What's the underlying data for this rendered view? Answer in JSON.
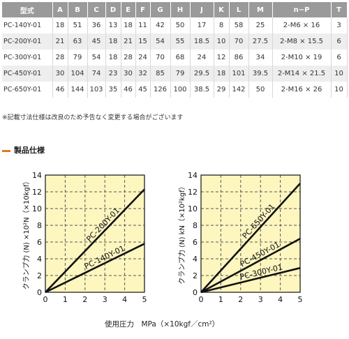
{
  "table": {
    "headers": [
      "型式",
      "A",
      "B",
      "C",
      "D",
      "E",
      "F",
      "G",
      "H",
      "J",
      "K",
      "L",
      "M",
      "n−P",
      "T"
    ],
    "rows": [
      [
        "PC-140Y-01",
        "18",
        "51",
        "36",
        "13",
        "18",
        "11",
        "42",
        "50",
        "17",
        "8",
        "58",
        "25",
        "2-M6 × 16",
        "3"
      ],
      [
        "PC-200Y-01",
        "21",
        "63",
        "45",
        "18",
        "21",
        "15",
        "54",
        "55",
        "18.5",
        "10",
        "70",
        "27.5",
        "2-M8 × 15.5",
        "6"
      ],
      [
        "PC-300Y-01",
        "28",
        "79",
        "54",
        "18",
        "28",
        "24",
        "70",
        "68",
        "24",
        "12",
        "86",
        "34",
        "2-M10 × 19",
        "6"
      ],
      [
        "PC-450Y-01",
        "30",
        "104",
        "74",
        "23",
        "30",
        "32",
        "85",
        "79",
        "29.5",
        "18",
        "101",
        "39.5",
        "2-M14 × 21.5",
        "10"
      ],
      [
        "PC-650Y-01",
        "46",
        "144",
        "103",
        "35",
        "46",
        "45",
        "126",
        "100",
        "38.5",
        "29",
        "142",
        "50",
        "2-M16 × 26",
        "10"
      ]
    ]
  },
  "note": "※記載寸法仕様は改良のため予告なく変更する場合がございます",
  "section_title": "製品仕様",
  "x_axis_title": "使用圧力　MPa（×10kgf／cm²）",
  "chart_data": [
    {
      "type": "line",
      "ylabel": "クランプ力 (N) ×10²N（×10kgf）",
      "xlim": [
        0,
        5
      ],
      "ylim": [
        0,
        14
      ],
      "x_ticks": [
        "0",
        "1",
        "2",
        "3",
        "4",
        "5"
      ],
      "y_ticks": [
        "0",
        "2",
        "4",
        "6",
        "8",
        "10",
        "12",
        "14"
      ],
      "grid": true,
      "series": [
        {
          "name": "PC-200Y-01",
          "x": [
            0,
            5
          ],
          "y": [
            0,
            12.3
          ]
        },
        {
          "name": "PC-140Y-01",
          "x": [
            0,
            5
          ],
          "y": [
            0,
            5.8
          ]
        }
      ]
    },
    {
      "type": "line",
      "ylabel": "クランプ力 (N) kN（×10²kgf）",
      "xlim": [
        0,
        5
      ],
      "ylim": [
        0,
        14
      ],
      "x_ticks": [
        "0",
        "1",
        "2",
        "3",
        "4",
        "5"
      ],
      "y_ticks": [
        "0",
        "2",
        "4",
        "6",
        "8",
        "10",
        "12",
        "14"
      ],
      "grid": true,
      "series": [
        {
          "name": "PC-650Y-01",
          "x": [
            0,
            5
          ],
          "y": [
            0,
            13.0
          ]
        },
        {
          "name": "PC-450Y-01",
          "x": [
            0,
            5
          ],
          "y": [
            0,
            6.4
          ]
        },
        {
          "name": "PC-300Y-01",
          "x": [
            0,
            5
          ],
          "y": [
            0,
            2.9
          ]
        }
      ]
    }
  ],
  "colors": {
    "plot_bg": "#fdf6bf",
    "grid": "#555555",
    "line": "#111111",
    "header_bg": "#9a9a9a",
    "accent": "#e07a1f"
  }
}
